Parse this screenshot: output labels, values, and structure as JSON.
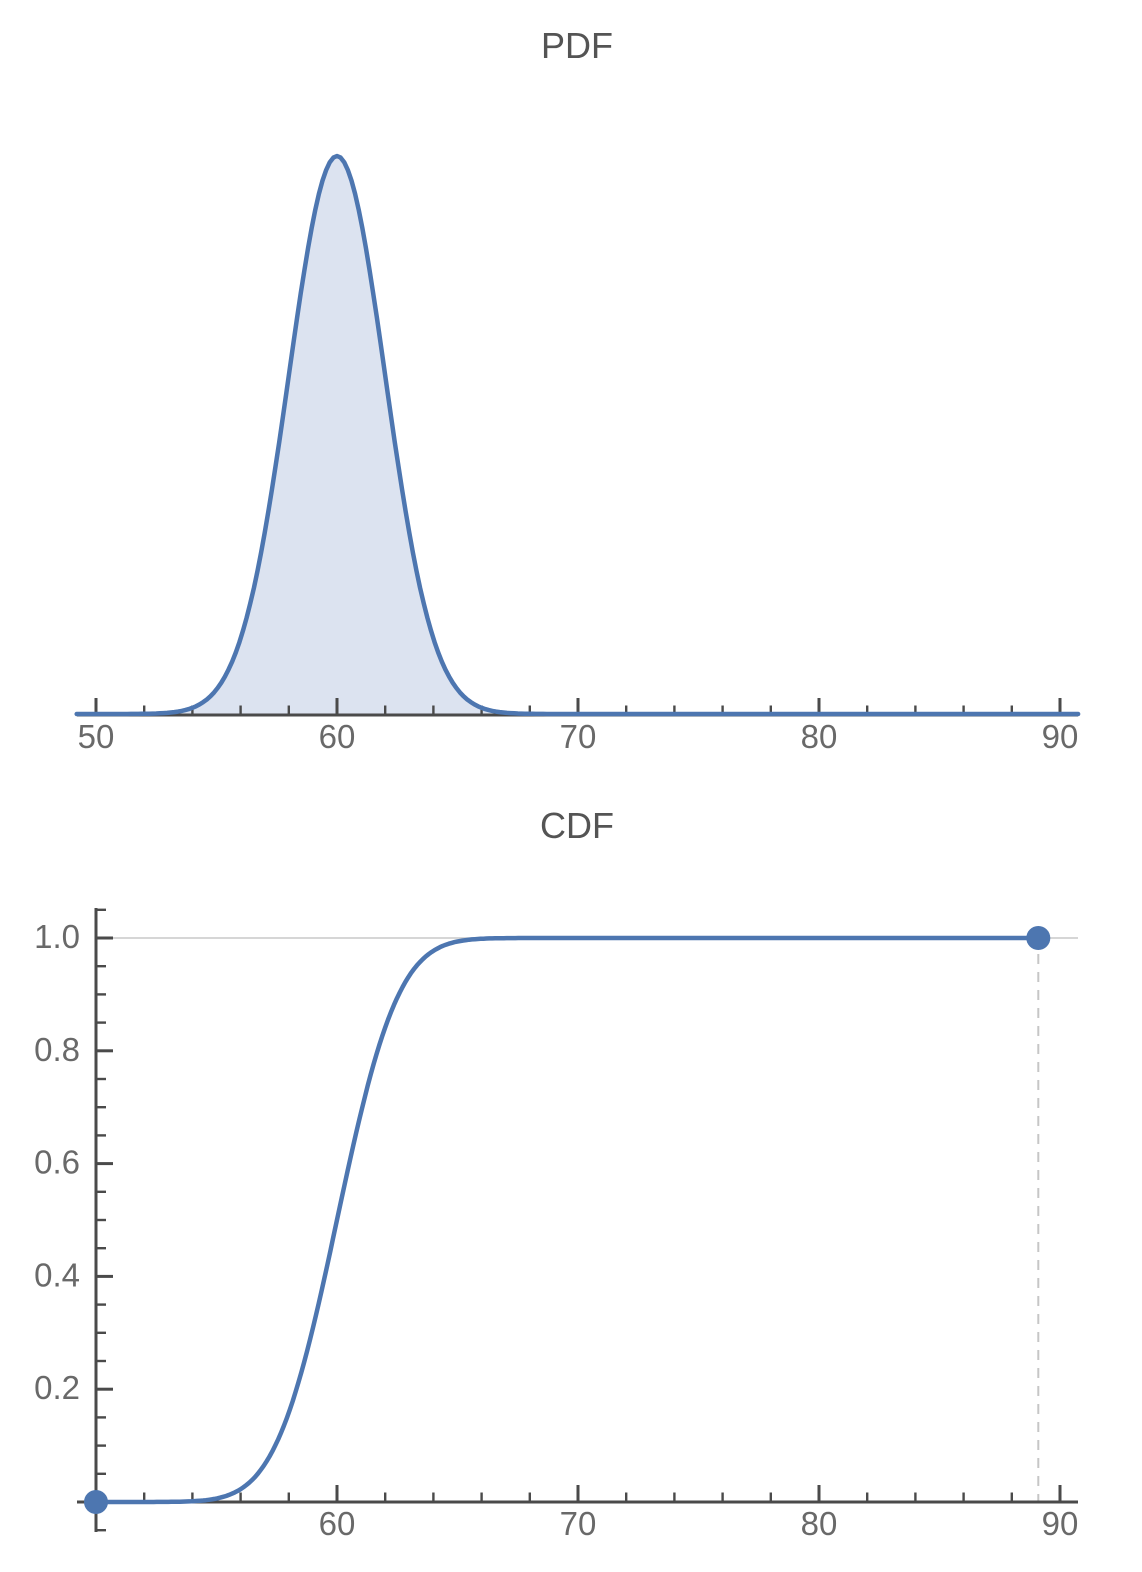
{
  "colors": {
    "curve_blue": "#4d76b0",
    "pdf_fill": "#dce3f0",
    "axis": "#4a4a4a",
    "tick_label": "#696969",
    "title": "#545454",
    "gridline": "#c9c9c9",
    "dashed_guide": "#c6c6c6",
    "background": "#ffffff"
  },
  "chart_data": [
    {
      "type": "area",
      "title": "PDF",
      "distribution": {
        "family": "normal",
        "mean": 60,
        "standard_deviation": 2
      },
      "x_range_shown": [
        49.2,
        90.75
      ],
      "x_major_ticks": [
        50,
        60,
        70,
        80,
        90
      ],
      "x_tick_labels": [
        "50",
        "60",
        "70",
        "80",
        "90"
      ],
      "x_minor_tick_step": 2,
      "y_axis_shown": false,
      "peak": {
        "x": 60,
        "pdf_value": 0.199
      },
      "grid": "off",
      "legend": "none"
    },
    {
      "type": "line",
      "title": "CDF",
      "distribution": {
        "family": "normal",
        "mean": 60,
        "standard_deviation": 2
      },
      "x_range_shown": [
        49.2,
        90.75
      ],
      "curve_x_range": [
        50,
        89.1
      ],
      "x_major_ticks": [
        60,
        70,
        80,
        90
      ],
      "x_tick_labels": [
        "60",
        "70",
        "80",
        "90"
      ],
      "x_minor_tick_step": 2,
      "y_range_shown": [
        -0.05,
        1.05
      ],
      "y_major_ticks": [
        0.2,
        0.4,
        0.6,
        0.8,
        1.0
      ],
      "y_tick_labels": [
        "0.2",
        "0.4",
        "0.6",
        "0.8",
        "1.0"
      ],
      "y_minor_tick_step": 0.05,
      "gridline_y": 1.0,
      "endpoints": [
        {
          "x": 50,
          "y": 0
        },
        {
          "x": 89.1,
          "y": 1
        }
      ],
      "dashed_guide_x": 89.1,
      "grid": "off",
      "legend": "none"
    }
  ]
}
